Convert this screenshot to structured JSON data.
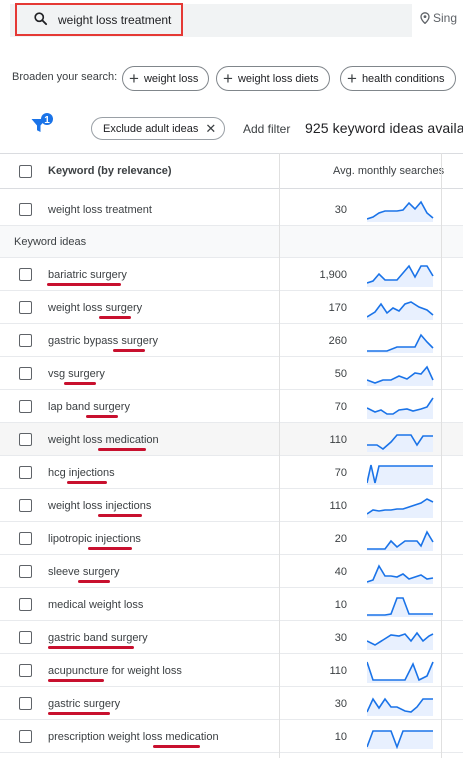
{
  "search": {
    "query": "weight loss treatment",
    "location_partial": "Sing"
  },
  "broaden": {
    "label": "Broaden your search:",
    "chips": [
      "weight loss",
      "weight loss diets",
      "health conditions"
    ]
  },
  "filters": {
    "badge_count": "1",
    "exclude_chip": "Exclude adult ideas",
    "add_filter": "Add filter",
    "ideas_count": "925 keyword ideas availa"
  },
  "table": {
    "col_keyword": "Keyword (by relevance)",
    "col_avg": "Avg. monthly searches",
    "section_label": "Keyword ideas",
    "searched": {
      "keyword": "weight loss treatment",
      "avg": "30"
    },
    "ideas": [
      {
        "keyword": "bariatric surgery",
        "avg": "1,900"
      },
      {
        "keyword": "weight loss surgery",
        "avg": "170"
      },
      {
        "keyword": "gastric bypass surgery",
        "avg": "260"
      },
      {
        "keyword": "vsg surgery",
        "avg": "50"
      },
      {
        "keyword": "lap band surgery",
        "avg": "70"
      },
      {
        "keyword": "weight loss medication",
        "avg": "110"
      },
      {
        "keyword": "hcg injections",
        "avg": "70"
      },
      {
        "keyword": "weight loss injections",
        "avg": "110"
      },
      {
        "keyword": "lipotropic injections",
        "avg": "20"
      },
      {
        "keyword": "sleeve surgery",
        "avg": "40"
      },
      {
        "keyword": "medical weight loss",
        "avg": "10"
      },
      {
        "keyword": "gastric band surgery",
        "avg": "30"
      },
      {
        "keyword": "acupuncture for weight loss",
        "avg": "110"
      },
      {
        "keyword": "gastric surgery",
        "avg": "30"
      },
      {
        "keyword": "prescription weight loss medication",
        "avg": "10"
      }
    ]
  },
  "colors": {
    "accent": "#1a73e8",
    "annotation_red": "#c8102e",
    "spark_fill": "#e8f0fe"
  }
}
